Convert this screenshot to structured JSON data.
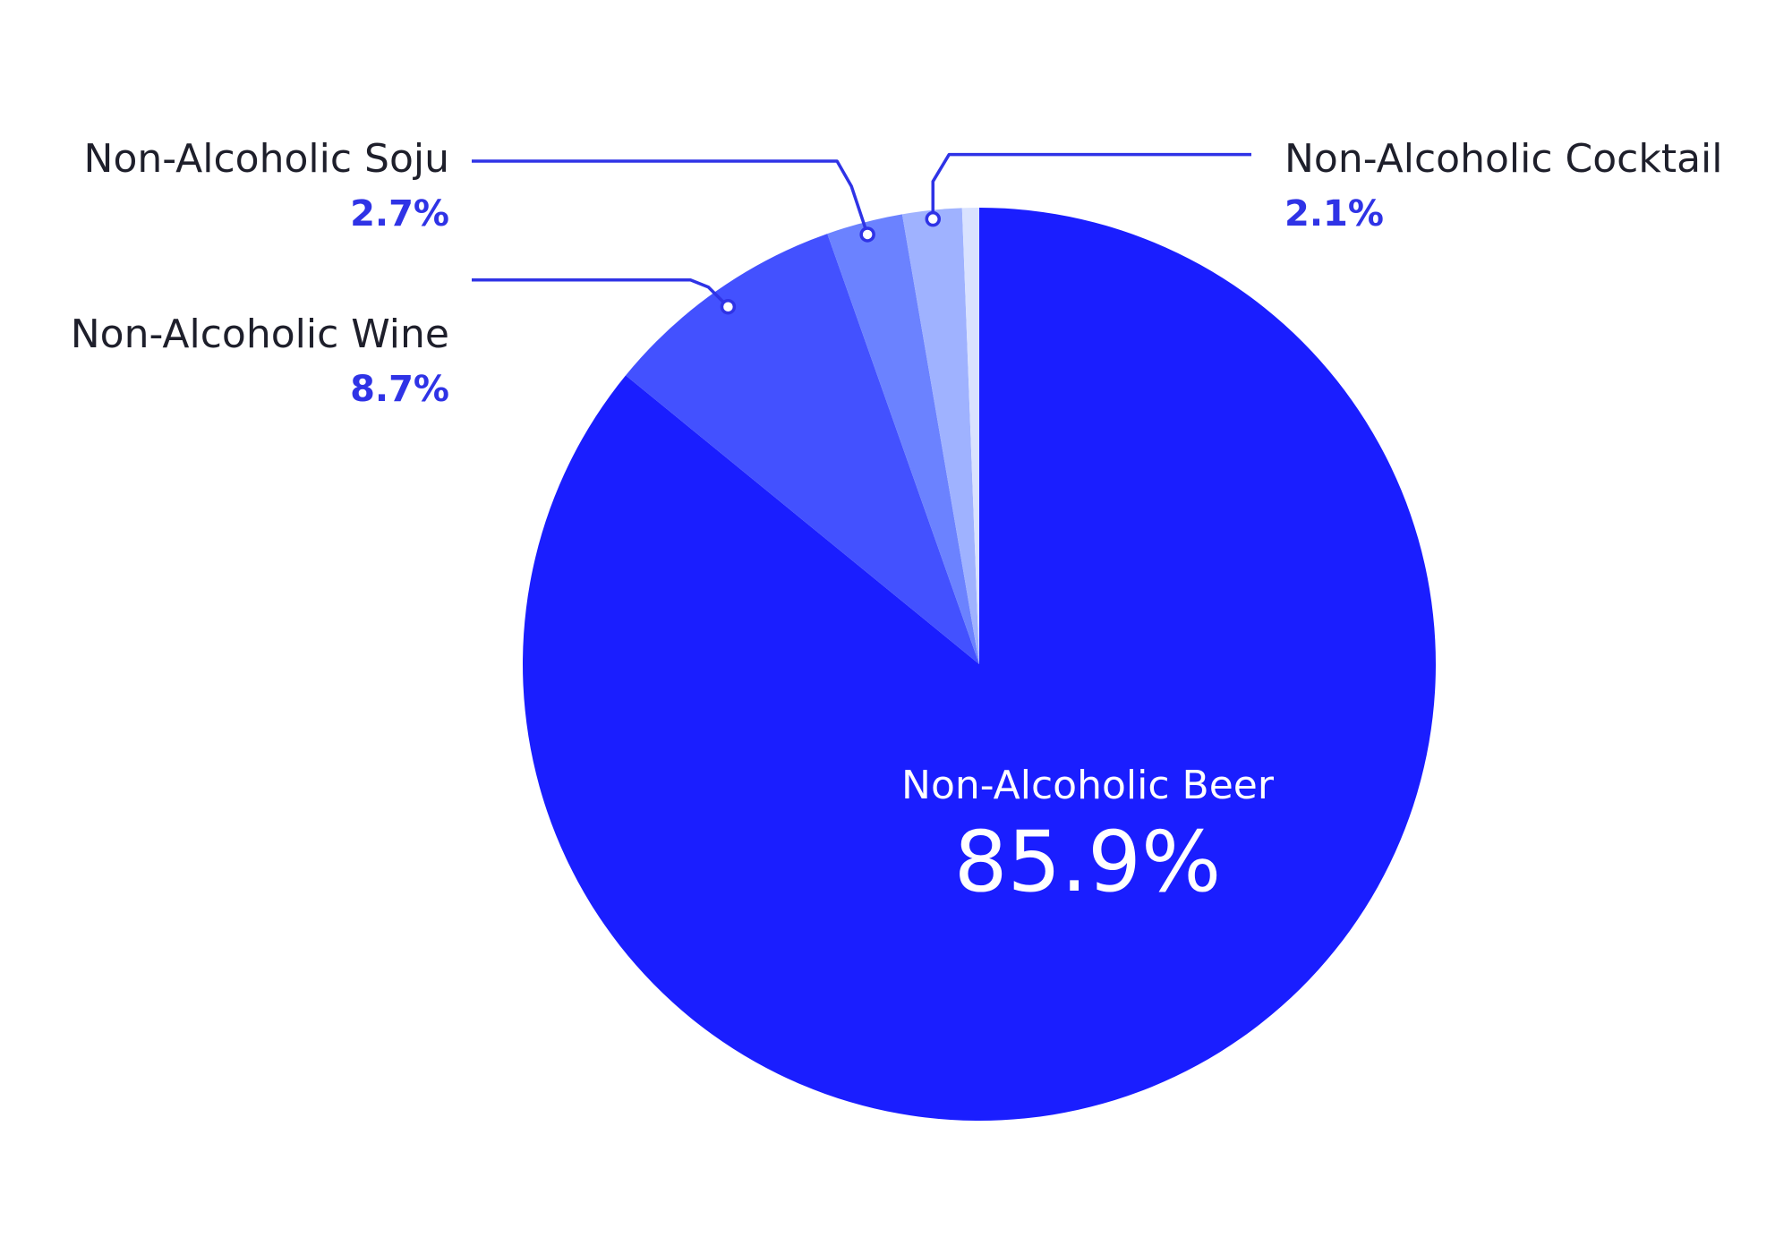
{
  "chart_data": {
    "type": "pie",
    "title": "",
    "start_angle_deg": 0,
    "direction": "clockwise",
    "slices": [
      {
        "label": "Non-Alcoholic Beer",
        "value": 85.9,
        "value_label": "85.9%",
        "color": "#1a1eff",
        "label_position": "inside"
      },
      {
        "label": "Non-Alcoholic Wine",
        "value": 8.7,
        "value_label": "8.7%",
        "color": "#4351ff",
        "label_position": "outside-left"
      },
      {
        "label": "Non-Alcoholic Soju",
        "value": 2.7,
        "value_label": "2.7%",
        "color": "#6b82ff",
        "label_position": "outside-left"
      },
      {
        "label": "Non-Alcoholic Cocktail",
        "value": 2.1,
        "value_label": "2.1%",
        "color": "#9fb2ff",
        "label_position": "outside-right"
      },
      {
        "label": "",
        "value": 0.6,
        "value_label": "",
        "color": "#d9e2ff",
        "label_position": "none"
      }
    ],
    "colors": {
      "label_text": "#1e1f2b",
      "value_text": "#2f33e6",
      "leader_line": "#2f33e6",
      "inside_text": "#ffffff",
      "background": "#ffffff"
    }
  }
}
